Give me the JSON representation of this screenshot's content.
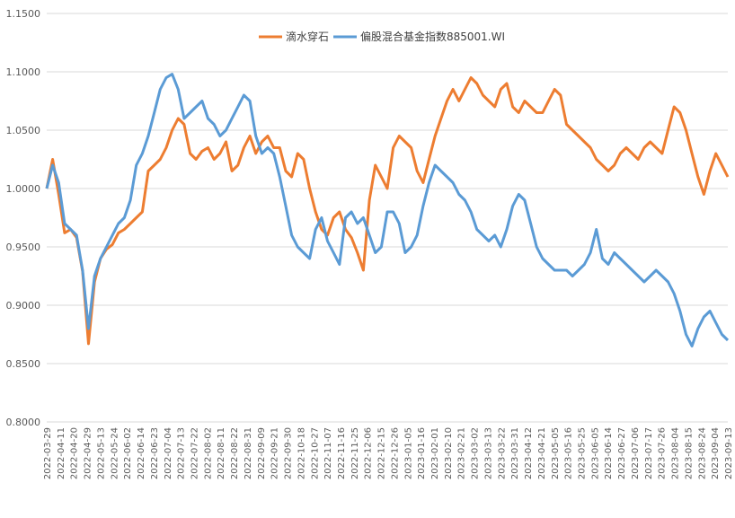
{
  "chart_data": {
    "type": "line",
    "title": "",
    "xlabel": "",
    "ylabel": "",
    "ylim": [
      0.8,
      1.15
    ],
    "y_ticks": [
      "0.8000",
      "0.8500",
      "0.9000",
      "0.9500",
      "1.0000",
      "1.0500",
      "1.1000",
      "1.1500"
    ],
    "grid": true,
    "legend_position": "top-center",
    "x_ticks": [
      "2022-03-29",
      "2022-04-11",
      "2022-04-20",
      "2022-04-29",
      "2022-05-13",
      "2022-05-24",
      "2022-06-02",
      "2022-06-14",
      "2022-06-23",
      "2022-07-04",
      "2022-07-13",
      "2022-07-22",
      "2022-08-02",
      "2022-08-11",
      "2022-08-22",
      "2022-08-31",
      "2022-09-09",
      "2022-09-21",
      "2022-09-30",
      "2022-10-18",
      "2022-10-27",
      "2022-11-07",
      "2022-11-16",
      "2022-11-25",
      "2022-12-06",
      "2022-12-15",
      "2022-12-26",
      "2023-01-05",
      "2023-01-16",
      "2023-02-01",
      "2023-02-10",
      "2023-02-21",
      "2023-03-02",
      "2023-03-13",
      "2023-03-22",
      "2023-03-31",
      "2023-04-12",
      "2023-04-21",
      "2023-05-05",
      "2023-05-16",
      "2023-05-25",
      "2023-06-05",
      "2023-06-14",
      "2023-06-27",
      "2023-07-06",
      "2023-07-17",
      "2023-07-26",
      "2023-08-04",
      "2023-08-15",
      "2023-08-24",
      "2023-09-04",
      "2023-09-13"
    ],
    "series": [
      {
        "name": "滴水穿石",
        "color": "#ED7D31",
        "values": [
          1.0,
          1.025,
          0.995,
          0.962,
          0.965,
          0.958,
          0.929,
          0.867,
          0.92,
          0.94,
          0.948,
          0.952,
          0.962,
          0.965,
          0.97,
          0.975,
          0.98,
          1.015,
          1.02,
          1.025,
          1.035,
          1.05,
          1.06,
          1.055,
          1.03,
          1.025,
          1.032,
          1.035,
          1.025,
          1.03,
          1.04,
          1.015,
          1.02,
          1.035,
          1.045,
          1.03,
          1.04,
          1.045,
          1.035,
          1.035,
          1.015,
          1.01,
          1.03,
          1.025,
          1.0,
          0.98,
          0.965,
          0.96,
          0.975,
          0.98,
          0.965,
          0.958,
          0.945,
          0.93,
          0.99,
          1.02,
          1.01,
          1.0,
          1.035,
          1.045,
          1.04,
          1.035,
          1.015,
          1.005,
          1.025,
          1.045,
          1.06,
          1.075,
          1.085,
          1.075,
          1.085,
          1.095,
          1.09,
          1.08,
          1.075,
          1.07,
          1.085,
          1.09,
          1.07,
          1.065,
          1.075,
          1.07,
          1.065,
          1.065,
          1.075,
          1.085,
          1.08,
          1.055,
          1.05,
          1.045,
          1.04,
          1.035,
          1.025,
          1.02,
          1.015,
          1.02,
          1.03,
          1.035,
          1.03,
          1.025,
          1.035,
          1.04,
          1.035,
          1.03,
          1.05,
          1.07,
          1.065,
          1.05,
          1.03,
          1.01,
          0.995,
          1.015,
          1.03,
          1.02,
          1.01
        ]
      },
      {
        "name": "偏股混合基金指数885001.WI",
        "color": "#5B9BD5",
        "values": [
          1.0,
          1.02,
          1.005,
          0.97,
          0.965,
          0.96,
          0.93,
          0.88,
          0.925,
          0.94,
          0.95,
          0.96,
          0.97,
          0.975,
          0.99,
          1.02,
          1.03,
          1.045,
          1.065,
          1.085,
          1.095,
          1.098,
          1.085,
          1.06,
          1.065,
          1.07,
          1.075,
          1.06,
          1.055,
          1.045,
          1.05,
          1.06,
          1.07,
          1.08,
          1.075,
          1.045,
          1.03,
          1.035,
          1.03,
          1.01,
          0.985,
          0.96,
          0.95,
          0.945,
          0.94,
          0.965,
          0.975,
          0.955,
          0.945,
          0.935,
          0.975,
          0.98,
          0.97,
          0.975,
          0.96,
          0.945,
          0.95,
          0.98,
          0.98,
          0.97,
          0.945,
          0.95,
          0.96,
          0.985,
          1.005,
          1.02,
          1.015,
          1.01,
          1.005,
          0.995,
          0.99,
          0.98,
          0.965,
          0.96,
          0.955,
          0.96,
          0.95,
          0.965,
          0.985,
          0.995,
          0.99,
          0.97,
          0.95,
          0.94,
          0.935,
          0.93,
          0.93,
          0.93,
          0.925,
          0.93,
          0.935,
          0.945,
          0.965,
          0.94,
          0.935,
          0.945,
          0.94,
          0.935,
          0.93,
          0.925,
          0.92,
          0.925,
          0.93,
          0.925,
          0.92,
          0.91,
          0.895,
          0.875,
          0.865,
          0.88,
          0.89,
          0.895,
          0.885,
          0.875,
          0.87
        ]
      }
    ]
  }
}
